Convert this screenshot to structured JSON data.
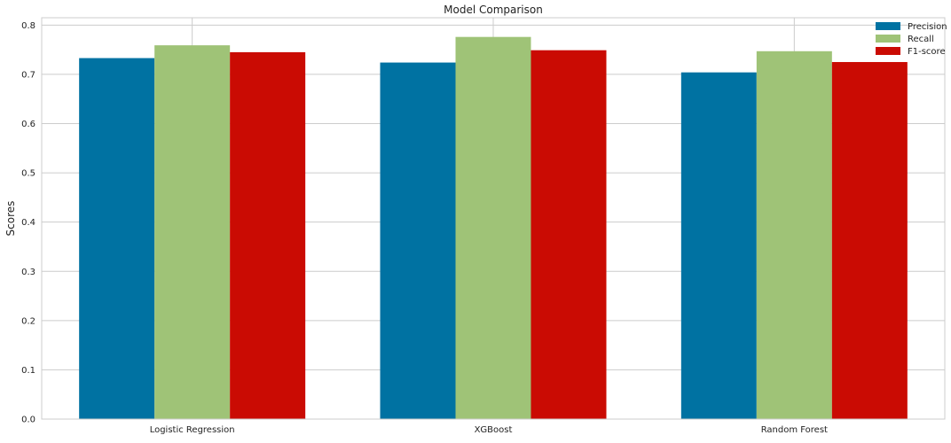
{
  "chart_data": {
    "type": "bar",
    "title": "Model Comparison",
    "xlabel": "",
    "ylabel": "Scores",
    "categories": [
      "Logistic Regression",
      "XGBoost",
      "Random Forest"
    ],
    "series": [
      {
        "name": "Precision",
        "values": [
          0.733,
          0.724,
          0.704
        ],
        "color": "#0072a2"
      },
      {
        "name": "Recall",
        "values": [
          0.759,
          0.776,
          0.747
        ],
        "color": "#9fc377"
      },
      {
        "name": "F1-score",
        "values": [
          0.745,
          0.749,
          0.725
        ],
        "color": "#ca0b03"
      }
    ],
    "ylim": [
      0,
      0.815
    ],
    "yticks": [
      "0.0",
      "0.1",
      "0.2",
      "0.3",
      "0.4",
      "0.5",
      "0.6",
      "0.7",
      "0.8"
    ],
    "grid": true,
    "legend_position": "top-right"
  }
}
